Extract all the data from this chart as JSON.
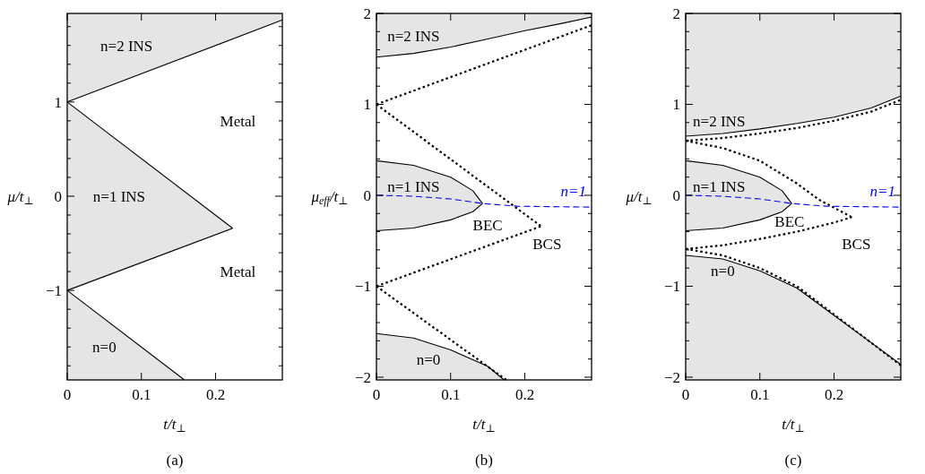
{
  "chart_data": [
    {
      "type": "line",
      "title": "(a)",
      "xlabel": "t/t$_{⊥}$",
      "ylabel": "μ/t$_{⊥}$",
      "xlim": [
        0,
        0.29
      ],
      "ylim": [
        -1.95,
        1.94
      ],
      "xticks": [
        0,
        0.1,
        0.2
      ],
      "yticks": [
        {
          "value": -1.8,
          "label": null
        },
        {
          "value": -1.6,
          "label": null
        },
        {
          "value": -1.4,
          "label": null
        },
        {
          "value": -1.2,
          "label": null
        },
        -1,
        {
          "value": -0.8,
          "label": null
        },
        {
          "value": -0.6,
          "label": null
        },
        {
          "value": -0.4,
          "label": null
        },
        {
          "value": -0.2,
          "label": null
        },
        0,
        {
          "value": 0.2,
          "label": null
        },
        {
          "value": 0.4,
          "label": null
        },
        {
          "value": 0.6,
          "label": null
        },
        {
          "value": 0.8,
          "label": null
        },
        1,
        {
          "value": 1.2,
          "label": null
        },
        {
          "value": 1.4,
          "label": null
        },
        {
          "value": 1.6,
          "label": null
        },
        {
          "value": 1.8,
          "label": null
        }
      ],
      "grid": false,
      "legend": false,
      "marker": "none",
      "series": [
        {
          "color": "#000000",
          "line_style": "solid",
          "x": [
            0,
            0.29
          ],
          "values": [
            1,
            1.87
          ],
          "lower": [
            1,
            1.87
          ],
          "upper": [
            1.94,
            1.94
          ]
        },
        {
          "color": "#000000",
          "line_style": "solid",
          "x": [
            0,
            0.223
          ],
          "values": [
            1,
            -0.34
          ],
          "lower": [
            -1,
            -0.34
          ],
          "upper": [
            1,
            -0.34
          ]
        },
        {
          "color": "#000000",
          "line_style": "solid",
          "x": [
            0,
            0.223
          ],
          "values": [
            -1,
            -0.34
          ]
        },
        {
          "color": "#000000",
          "line_style": "solid",
          "x": [
            0,
            0.158
          ],
          "values": [
            -1,
            -1.95
          ],
          "lower": [
            -1.95,
            -1.95
          ],
          "upper": [
            -1,
            -1.95
          ]
        }
      ],
      "annotations": [
        "n=2 INS",
        "Metal",
        "n=1 INS",
        "Metal",
        "n=0"
      ]
    },
    {
      "type": "line",
      "title": "(b)",
      "xlabel": "t/t$_{⊥}$",
      "ylabel": "μ$_{eff}$/t$_{⊥}$",
      "xlim": [
        0,
        0.29
      ],
      "ylim": [
        -2.03,
        2.0
      ],
      "xticks": [
        0,
        0.1,
        0.2
      ],
      "yticks": [
        -2,
        {
          "value": -1.8,
          "label": null
        },
        {
          "value": -1.6,
          "label": null
        },
        {
          "value": -1.4,
          "label": null
        },
        {
          "value": -1.2,
          "label": null
        },
        -1,
        {
          "value": -0.8,
          "label": null
        },
        {
          "value": -0.6,
          "label": null
        },
        {
          "value": -0.4,
          "label": null
        },
        {
          "value": -0.2,
          "label": null
        },
        0,
        {
          "value": 0.2,
          "label": null
        },
        {
          "value": 0.4,
          "label": null
        },
        {
          "value": 0.6,
          "label": null
        },
        {
          "value": 0.8,
          "label": null
        },
        1,
        {
          "value": 1.2,
          "label": null
        },
        {
          "value": 1.4,
          "label": null
        },
        {
          "value": 1.6,
          "label": null
        },
        {
          "value": 1.8,
          "label": null
        },
        2
      ],
      "grid": false,
      "legend": false,
      "marker": "none",
      "series": [
        {
          "color": "#000000",
          "line_style": "solid",
          "x": [
            0,
            0.05,
            0.1,
            0.15,
            0.2,
            0.25,
            0.29
          ],
          "values": [
            1.52,
            1.56,
            1.63,
            1.72,
            1.81,
            1.89,
            1.96
          ],
          "lower": [
            1.52,
            1.56,
            1.63,
            1.72,
            1.81,
            1.89,
            1.96
          ],
          "upper": [
            2,
            2,
            2,
            2,
            2,
            2,
            2
          ]
        },
        {
          "color": "#000000",
          "line_style": "solid",
          "x": [
            0,
            0.05,
            0.1,
            0.13,
            0.143
          ],
          "values": [
            0.38,
            0.33,
            0.2,
            0.05,
            -0.09
          ],
          "lower": [
            -0.39,
            -0.36,
            -0.27,
            -0.18,
            -0.09
          ],
          "upper": [
            0.38,
            0.33,
            0.2,
            0.05,
            -0.09
          ]
        },
        {
          "color": "#000000",
          "line_style": "solid",
          "x": [
            0,
            0.05,
            0.1,
            0.13,
            0.143
          ],
          "values": [
            -0.39,
            -0.36,
            -0.27,
            -0.18,
            -0.09
          ]
        },
        {
          "color": "#000000",
          "line_style": "solid",
          "x": [
            0,
            0.05,
            0.1,
            0.15,
            0.172
          ],
          "values": [
            -1.52,
            -1.57,
            -1.7,
            -1.88,
            -2.03
          ],
          "lower": [
            -2.03,
            -2.03,
            -2.03,
            -2.03,
            -2.03
          ],
          "upper": [
            -1.52,
            -1.57,
            -1.7,
            -1.88,
            -2.03
          ]
        },
        {
          "color": "#000000",
          "line_style": "dotted",
          "x": [
            0,
            0.29
          ],
          "values": [
            1,
            1.87
          ]
        },
        {
          "color": "#000000",
          "line_style": "dotted",
          "x": [
            0,
            0.222
          ],
          "values": [
            1,
            -0.34
          ]
        },
        {
          "color": "#000000",
          "line_style": "dotted",
          "x": [
            0,
            0.222
          ],
          "values": [
            -1,
            -0.34
          ]
        },
        {
          "color": "#000000",
          "line_style": "dotted",
          "x": [
            0,
            0.175
          ],
          "values": [
            -1,
            -2.03
          ]
        },
        {
          "name": "n=1",
          "color": "#0000ff",
          "line_style": "dashed",
          "x": [
            0,
            0.05,
            0.1,
            0.143,
            0.19,
            0.29
          ],
          "values": [
            0,
            -0.01,
            -0.04,
            -0.09,
            -0.12,
            -0.13
          ]
        }
      ],
      "annotations": [
        "n=2 INS",
        "n=1 INS",
        "BEC",
        "BCS",
        "n=0"
      ]
    },
    {
      "type": "line",
      "title": "(c)",
      "xlabel": "t/t$_{⊥}$",
      "ylabel": "μ/t$_{⊥}$",
      "xlim": [
        0,
        0.29
      ],
      "ylim": [
        -2.03,
        2.0
      ],
      "xticks": [
        0,
        0.1,
        0.2
      ],
      "yticks": [
        -2,
        {
          "value": -1.8,
          "label": null
        },
        {
          "value": -1.6,
          "label": null
        },
        {
          "value": -1.4,
          "label": null
        },
        {
          "value": -1.2,
          "label": null
        },
        -1,
        {
          "value": -0.8,
          "label": null
        },
        {
          "value": -0.6,
          "label": null
        },
        {
          "value": -0.4,
          "label": null
        },
        {
          "value": -0.2,
          "label": null
        },
        0,
        {
          "value": 0.2,
          "label": null
        },
        {
          "value": 0.4,
          "label": null
        },
        {
          "value": 0.6,
          "label": null
        },
        {
          "value": 0.8,
          "label": null
        },
        1,
        {
          "value": 1.2,
          "label": null
        },
        {
          "value": 1.4,
          "label": null
        },
        {
          "value": 1.6,
          "label": null
        },
        {
          "value": 1.8,
          "label": null
        },
        2
      ],
      "grid": false,
      "legend": false,
      "marker": "none",
      "series": [
        {
          "color": "#000000",
          "line_style": "solid",
          "x": [
            0,
            0.05,
            0.1,
            0.15,
            0.2,
            0.25,
            0.29
          ],
          "values": [
            0.65,
            0.68,
            0.73,
            0.79,
            0.86,
            0.96,
            1.09
          ],
          "lower": [
            0.65,
            0.68,
            0.73,
            0.79,
            0.86,
            0.96,
            1.09
          ],
          "upper": [
            2,
            2,
            2,
            2,
            2,
            2,
            2
          ]
        },
        {
          "color": "#000000",
          "line_style": "solid",
          "x": [
            0,
            0.05,
            0.1,
            0.13,
            0.143
          ],
          "values": [
            0.38,
            0.33,
            0.2,
            0.05,
            -0.09
          ],
          "lower": [
            -0.39,
            -0.36,
            -0.27,
            -0.18,
            -0.09
          ],
          "upper": [
            0.38,
            0.33,
            0.2,
            0.05,
            -0.09
          ]
        },
        {
          "color": "#000000",
          "line_style": "solid",
          "x": [
            0,
            0.05,
            0.1,
            0.13,
            0.143
          ],
          "values": [
            -0.39,
            -0.36,
            -0.27,
            -0.18,
            -0.09
          ]
        },
        {
          "color": "#000000",
          "line_style": "solid",
          "x": [
            0,
            0.05,
            0.1,
            0.15,
            0.2,
            0.25,
            0.29
          ],
          "values": [
            -0.66,
            -0.7,
            -0.83,
            -1.02,
            -1.32,
            -1.62,
            -1.86
          ],
          "lower": [
            -2.03,
            -2.03,
            -2.03,
            -2.03,
            -2.03,
            -2.03,
            -2.03
          ],
          "upper": [
            -0.66,
            -0.7,
            -0.83,
            -1.02,
            -1.32,
            -1.62,
            -1.86
          ]
        },
        {
          "color": "#000000",
          "line_style": "dotted",
          "x": [
            0,
            0.05,
            0.1,
            0.15,
            0.2,
            0.25,
            0.29
          ],
          "values": [
            0.6,
            0.63,
            0.68,
            0.74,
            0.82,
            0.92,
            1.05
          ]
        },
        {
          "color": "#000000",
          "line_style": "dotted",
          "x": [
            0,
            0.05,
            0.1,
            0.15,
            0.18,
            0.224
          ],
          "values": [
            0.6,
            0.52,
            0.38,
            0.13,
            -0.05,
            -0.24
          ]
        },
        {
          "color": "#000000",
          "line_style": "dotted",
          "x": [
            0,
            0.05,
            0.1,
            0.15,
            0.2,
            0.224
          ],
          "values": [
            -0.59,
            -0.55,
            -0.48,
            -0.4,
            -0.3,
            -0.24
          ]
        },
        {
          "color": "#000000",
          "line_style": "dotted",
          "x": [
            0,
            0.05,
            0.1,
            0.15,
            0.2,
            0.25,
            0.29
          ],
          "values": [
            -0.59,
            -0.66,
            -0.8,
            -1.0,
            -1.31,
            -1.62,
            -1.87
          ]
        },
        {
          "name": "n=1",
          "color": "#0000ff",
          "line_style": "dashed",
          "x": [
            0,
            0.05,
            0.1,
            0.143,
            0.19,
            0.29
          ],
          "values": [
            0,
            -0.01,
            -0.04,
            -0.09,
            -0.12,
            -0.13
          ]
        }
      ],
      "annotations": [
        "n=2 INS",
        "n=1 INS",
        "BEC",
        "BCS",
        "n=0"
      ]
    }
  ]
}
